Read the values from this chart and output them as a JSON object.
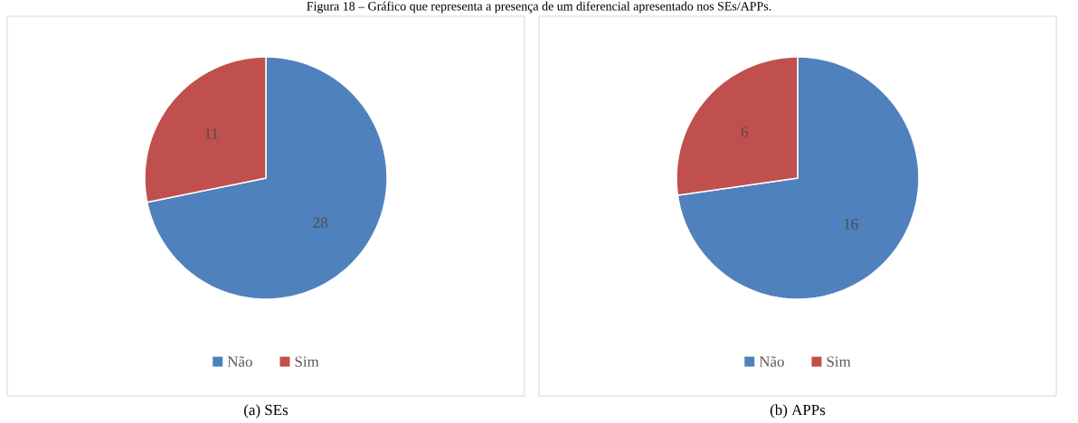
{
  "chart_data": [
    {
      "type": "pie",
      "title": "Figura 18 – Gráfico que representa a presença de um diferencial apresentado nos SEs/APPs.",
      "categories": [
        "Não",
        "Sim"
      ],
      "values": [
        28,
        11
      ],
      "colors": [
        "#4f81bd",
        "#c0504d"
      ],
      "data_labels": true,
      "legend": "bottom",
      "annotations": [
        "(a) SEs"
      ]
    },
    {
      "type": "pie",
      "categories": [
        "Não",
        "Sim"
      ],
      "values": [
        16,
        6
      ],
      "colors": [
        "#4f81bd",
        "#c0504d"
      ],
      "data_labels": true,
      "legend": "bottom",
      "annotations": [
        "(b) APPs"
      ]
    }
  ]
}
